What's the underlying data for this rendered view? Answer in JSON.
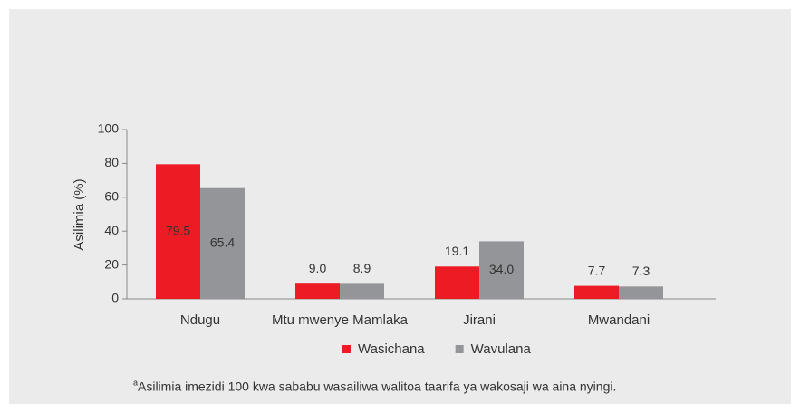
{
  "chart_data": {
    "type": "bar",
    "ylabel": "Asilimia (%)",
    "categories": [
      "Ndugu",
      "Mtu mwenye Mamlaka",
      "Jirani",
      "Mwandani"
    ],
    "series": [
      {
        "name": "Wasichana",
        "color": "#ed1c24",
        "values": [
          79.5,
          9.0,
          19.1,
          7.7
        ],
        "value_labels": [
          "79.5",
          "9.0",
          "19.1",
          "7.7"
        ]
      },
      {
        "name": "Wavulana",
        "color": "#939598",
        "values": [
          65.4,
          8.9,
          34.0,
          7.3
        ],
        "value_labels": [
          "65.4",
          "8.9",
          "34.0",
          "7.3"
        ]
      }
    ],
    "ylim": [
      0,
      100
    ],
    "yticks": [
      0,
      20,
      40,
      60,
      80,
      100
    ],
    "grid": false,
    "legend": "bottom",
    "footnote_marker": "a",
    "footnote": "Asilimia imezidi 100 kwa sababu wasailiwa walitoa taarifa ya wakosaji wa aina nyingi."
  }
}
